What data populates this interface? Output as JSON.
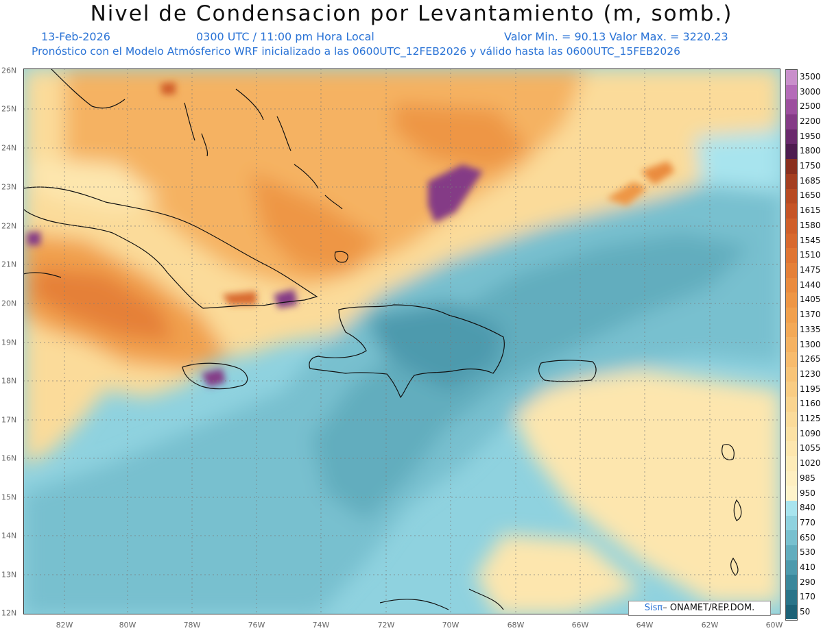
{
  "header": {
    "title": "Nivel de Condensacion por Levantamiento (m, somb.)",
    "date": "13-Feb-2026",
    "time": "0300 UTC / 11:00 pm Hora Local",
    "minmax": "Valor Min. = 90.13  Valor Max. = 3220.23",
    "forecast": "Pronóstico con el Modelo Atmósferico WRF inicializado a las 0600UTC_12FEB2026 y válido hasta las  0600UTC_15FEB2026"
  },
  "axes": {
    "lat_ticks": [
      "26N",
      "25N",
      "24N",
      "23N",
      "22N",
      "21N",
      "20N",
      "19N",
      "18N",
      "17N",
      "16N",
      "15N",
      "14N",
      "13N",
      "12N"
    ],
    "lon_ticks": [
      "82W",
      "80W",
      "78W",
      "76W",
      "74W",
      "72W",
      "70W",
      "68W",
      "66W",
      "64W",
      "62W",
      "60W"
    ]
  },
  "colorbar": {
    "levels": [
      "3500",
      "3000",
      "2500",
      "2200",
      "1950",
      "1800",
      "1750",
      "1685",
      "1650",
      "1615",
      "1580",
      "1545",
      "1510",
      "1475",
      "1440",
      "1405",
      "1370",
      "1335",
      "1300",
      "1265",
      "1230",
      "1195",
      "1160",
      "1125",
      "1090",
      "1055",
      "1020",
      "985",
      "950",
      "840",
      "770",
      "650",
      "530",
      "410",
      "290",
      "170",
      "50"
    ],
    "colors": [
      "#c98fcb",
      "#b46bb8",
      "#9c4f9e",
      "#843b86",
      "#6a2a6c",
      "#4e1c4f",
      "#8a2f1e",
      "#a43e20",
      "#b84a22",
      "#c65426",
      "#d05f2a",
      "#d8692e",
      "#e07533",
      "#e58038",
      "#ea8b3e",
      "#ee9645",
      "#f1a04d",
      "#f3a957",
      "#f5b262",
      "#f7bb6d",
      "#f8c478",
      "#f9cc83",
      "#fad48f",
      "#fbdb9a",
      "#fce1a4",
      "#fde6ae",
      "#fdebb8",
      "#feefc1",
      "#fef3ca",
      "#a8e4ee",
      "#8fd2df",
      "#78c0cf",
      "#62adbe",
      "#4d9aad",
      "#3a879b",
      "#2a7489",
      "#1d6277"
    ]
  },
  "credit": {
    "brand": "Sisπ",
    "text": " ONAMET/REP.DOM."
  }
}
